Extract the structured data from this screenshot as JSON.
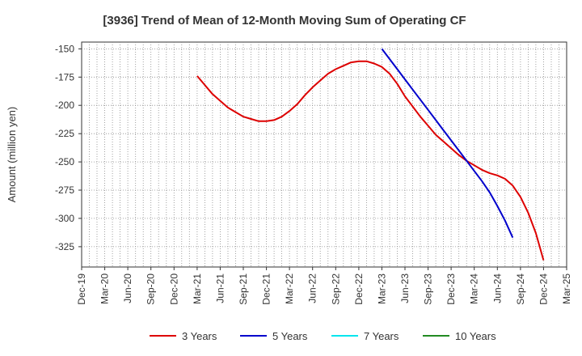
{
  "chart_data": {
    "type": "line",
    "title": "[3936]  Trend of Mean of 12-Month Moving Sum of Operating CF",
    "xlabel": "",
    "ylabel": "Amount (million yen)",
    "ylim": [
      -343,
      -144
    ],
    "yticks": [
      -150,
      -175,
      -200,
      -225,
      -250,
      -275,
      -300,
      -325
    ],
    "x_tick_labels": [
      "Dec-19",
      "Mar-20",
      "Jun-20",
      "Sep-20",
      "Dec-20",
      "Mar-21",
      "Jun-21",
      "Sep-21",
      "Dec-21",
      "Mar-22",
      "Jun-22",
      "Sep-22",
      "Dec-22",
      "Mar-23",
      "Jun-23",
      "Sep-23",
      "Dec-23",
      "Mar-24",
      "Jun-24",
      "Sep-24",
      "Dec-24",
      "Mar-25"
    ],
    "x_start": "Dec-19",
    "x_count_months": 63,
    "grid": true,
    "legend_position": "bottom",
    "series": [
      {
        "name": "3 Years",
        "color": "#dd0000",
        "start_month_index": 15,
        "values": [
          -174,
          -182,
          -190,
          -196,
          -202,
          -206,
          -210,
          -212,
          -214,
          -214,
          -213,
          -210,
          -205,
          -199,
          -191,
          -184,
          -178,
          -172,
          -168,
          -165,
          -162,
          -161,
          -161,
          -163,
          -166,
          -172,
          -181,
          -192,
          -201,
          -210,
          -218,
          -226,
          -232,
          -238,
          -244,
          -249,
          -253,
          -257,
          -260,
          -262,
          -265,
          -271,
          -281,
          -295,
          -313,
          -337
        ]
      },
      {
        "name": "5 Years",
        "color": "#0000cc",
        "start_month_index": 39,
        "values": [
          -150,
          -159,
          -168,
          -177,
          -186,
          -195,
          -204,
          -213,
          -222,
          -231,
          -240,
          -249,
          -258,
          -267,
          -277,
          -289,
          -302,
          -317
        ]
      },
      {
        "name": "7 Years",
        "color": "#00e5ee",
        "start_month_index": 0,
        "values": []
      },
      {
        "name": "10 Years",
        "color": "#228b22",
        "start_month_index": 0,
        "values": []
      }
    ]
  }
}
